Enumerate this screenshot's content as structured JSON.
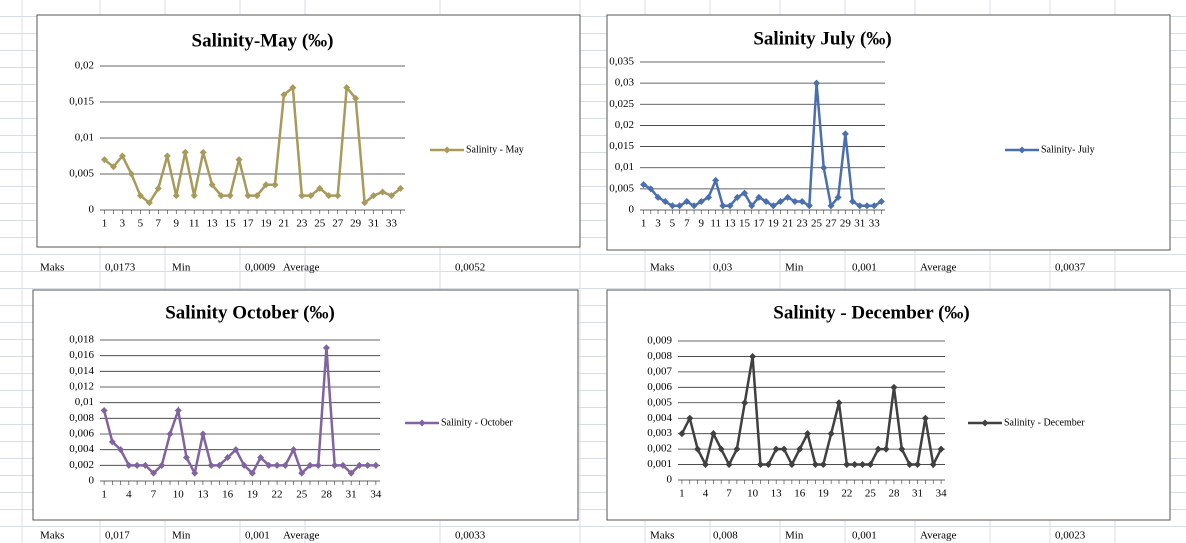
{
  "chart_data": [
    {
      "type": "line",
      "title": "Salinity-May (‰)",
      "categories": [
        "1",
        null,
        "3",
        null,
        "5",
        null,
        "7",
        null,
        "9",
        null,
        "11",
        null,
        "13",
        null,
        "15",
        null,
        "17",
        null,
        "19",
        null,
        "21",
        null,
        "23",
        null,
        "25",
        null,
        "27",
        null,
        "29",
        null,
        "31",
        null,
        "33",
        null
      ],
      "series": [
        {
          "name": "Salinity - May",
          "color": "#a89a5a",
          "values": [
            0.007,
            0.006,
            0.0075,
            0.005,
            0.002,
            0.001,
            0.003,
            0.0075,
            0.002,
            0.008,
            0.002,
            0.008,
            0.0035,
            0.002,
            0.002,
            0.007,
            0.002,
            0.002,
            0.0035,
            0.0035,
            0.016,
            0.017,
            0.002,
            0.002,
            0.003,
            0.002,
            0.002,
            0.017,
            0.0155,
            0.001,
            0.002,
            0.0025,
            0.002,
            0.003
          ]
        }
      ],
      "ylim": [
        0,
        0.02
      ],
      "yticks": [
        0,
        {
          "value": 0.005,
          "label": "0,005"
        },
        {
          "value": 0.01,
          "label": "0,01"
        },
        {
          "value": 0.015,
          "label": "0,015"
        },
        {
          "value": 0.02,
          "label": "0,02"
        }
      ],
      "grid": true,
      "legend": "right"
    },
    {
      "type": "line",
      "title": "Salinity July (‰)",
      "categories": [
        "1",
        null,
        "3",
        null,
        "5",
        null,
        "7",
        null,
        "9",
        null,
        "11",
        null,
        "13",
        null,
        "15",
        null,
        "17",
        null,
        "19",
        null,
        "21",
        null,
        "23",
        null,
        "25",
        null,
        "27",
        null,
        "29",
        null,
        "31",
        null,
        "33",
        null
      ],
      "series": [
        {
          "name": "Salinity- July",
          "color": "#4a6fb0",
          "values": [
            0.006,
            0.005,
            0.003,
            0.002,
            0.001,
            0.001,
            0.002,
            0.001,
            0.002,
            0.003,
            0.007,
            0.001,
            0.001,
            0.003,
            0.004,
            0.001,
            0.003,
            0.002,
            0.001,
            0.002,
            0.003,
            0.002,
            0.002,
            0.001,
            0.03,
            0.01,
            0.001,
            0.003,
            0.018,
            0.002,
            0.001,
            0.001,
            0.001,
            0.002
          ]
        }
      ],
      "ylim": [
        0,
        0.035
      ],
      "yticks": [
        0,
        {
          "value": 0.005,
          "label": "0,005"
        },
        {
          "value": 0.01,
          "label": "0,01"
        },
        {
          "value": 0.015,
          "label": "0,015"
        },
        {
          "value": 0.02,
          "label": "0,02"
        },
        {
          "value": 0.025,
          "label": "0,025"
        },
        {
          "value": 0.03,
          "label": "0,03"
        },
        {
          "value": 0.035,
          "label": "0,035"
        }
      ],
      "grid": true,
      "legend": "right"
    },
    {
      "type": "line",
      "title": "Salinity October (‰)",
      "categories": [
        "1",
        null,
        null,
        "4",
        null,
        null,
        "7",
        null,
        null,
        "10",
        null,
        null,
        "13",
        null,
        null,
        "16",
        null,
        null,
        "19",
        null,
        null,
        "22",
        null,
        null,
        "25",
        null,
        null,
        "28",
        null,
        null,
        "31",
        null,
        null,
        "34"
      ],
      "series": [
        {
          "name": "Salinity - October",
          "color": "#8064a2",
          "values": [
            0.009,
            0.005,
            0.004,
            0.002,
            0.002,
            0.002,
            0.001,
            0.002,
            0.006,
            0.009,
            0.003,
            0.001,
            0.006,
            0.002,
            0.002,
            0.003,
            0.004,
            0.002,
            0.001,
            0.003,
            0.002,
            0.002,
            0.002,
            0.004,
            0.001,
            0.002,
            0.002,
            0.017,
            0.002,
            0.002,
            0.001,
            0.002,
            0.002,
            0.002
          ]
        }
      ],
      "ylim": [
        0,
        0.018
      ],
      "yticks": [
        0,
        {
          "value": 0.002,
          "label": "0,002"
        },
        {
          "value": 0.004,
          "label": "0,004"
        },
        {
          "value": 0.006,
          "label": "0,006"
        },
        {
          "value": 0.008,
          "label": "0,008"
        },
        {
          "value": 0.01,
          "label": "0,01"
        },
        {
          "value": 0.012,
          "label": "0,012"
        },
        {
          "value": 0.014,
          "label": "0,014"
        },
        {
          "value": 0.016,
          "label": "0,016"
        },
        {
          "value": 0.018,
          "label": "0,018"
        }
      ],
      "grid": true,
      "legend": "right"
    },
    {
      "type": "line",
      "title": "Salinity - December (‰)",
      "categories": [
        "1",
        null,
        null,
        "4",
        null,
        null,
        "7",
        null,
        null,
        "10",
        null,
        null,
        "13",
        null,
        null,
        "16",
        null,
        null,
        "19",
        null,
        null,
        "22",
        null,
        null,
        "25",
        null,
        null,
        "28",
        null,
        null,
        "31",
        null,
        null,
        "34"
      ],
      "series": [
        {
          "name": "Salinity - December",
          "color": "#404040",
          "values": [
            0.003,
            0.004,
            0.002,
            0.001,
            0.003,
            0.002,
            0.001,
            0.002,
            0.005,
            0.008,
            0.001,
            0.001,
            0.002,
            0.002,
            0.001,
            0.002,
            0.003,
            0.001,
            0.001,
            0.003,
            0.005,
            0.001,
            0.001,
            0.001,
            0.001,
            0.002,
            0.002,
            0.006,
            0.002,
            0.001,
            0.001,
            0.004,
            0.001,
            0.002
          ]
        }
      ],
      "ylim": [
        0,
        0.009
      ],
      "yticks": [
        0,
        {
          "value": 0.001,
          "label": "0,001"
        },
        {
          "value": 0.002,
          "label": "0,002"
        },
        {
          "value": 0.003,
          "label": "0,003"
        },
        {
          "value": 0.004,
          "label": "0,004"
        },
        {
          "value": 0.005,
          "label": "0,005"
        },
        {
          "value": 0.006,
          "label": "0,006"
        },
        {
          "value": 0.007,
          "label": "0,007"
        },
        {
          "value": 0.008,
          "label": "0,008"
        },
        {
          "value": 0.009,
          "label": "0,009"
        }
      ],
      "grid": true,
      "legend": "right"
    }
  ],
  "stats": [
    [
      "Maks",
      "0,0173",
      "Min",
      "0,0009",
      "Average",
      "0,0052"
    ],
    [
      "Maks",
      "0,03",
      "Min",
      "0,001",
      "Average",
      "0,0037"
    ],
    [
      "Maks",
      "0,017",
      "Min",
      "0,001",
      "Average",
      "0,0033"
    ],
    [
      "Maks",
      "0,008",
      "Min",
      "0,001",
      "Average",
      "0,0023"
    ]
  ]
}
